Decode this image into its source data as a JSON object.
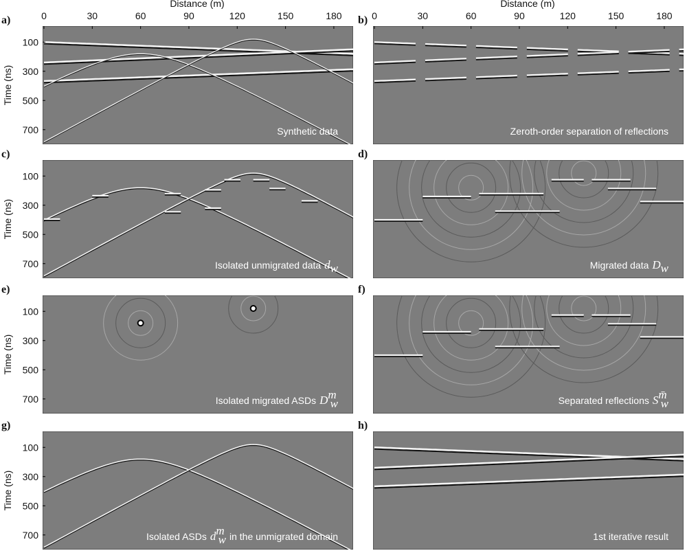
{
  "figure": {
    "x_axis_label": "Distance (m)",
    "y_axis_label": "Time (ns)",
    "x_ticks": [
      0,
      30,
      60,
      90,
      120,
      150,
      180
    ],
    "y_ticks": [
      100,
      300,
      500,
      700
    ],
    "panels": [
      {
        "label": "a)",
        "caption": "Synthetic data"
      },
      {
        "label": "b)",
        "caption": "Zeroth-order separation of reflections"
      },
      {
        "label": "c)",
        "caption": "Isolated unmigrated data",
        "symbol": "d",
        "subscript": "w"
      },
      {
        "label": "d)",
        "caption": "Migrated data",
        "symbol": "D",
        "subscript": "w"
      },
      {
        "label": "e)",
        "caption": "Isolated migrated ASDs",
        "symbol": "D",
        "subscript": "w",
        "superscript": "m"
      },
      {
        "label": "f)",
        "caption": "Separated reflections",
        "symbol": "S",
        "subscript": "w",
        "superscript": "m̄"
      },
      {
        "label": "g)",
        "caption": "Isolated ASDs",
        "symbol": "d",
        "subscript": "w",
        "superscript": "m",
        "caption_after": "in the unmigrated domain"
      },
      {
        "label": "h)",
        "caption": "1st iterative result"
      }
    ]
  }
}
